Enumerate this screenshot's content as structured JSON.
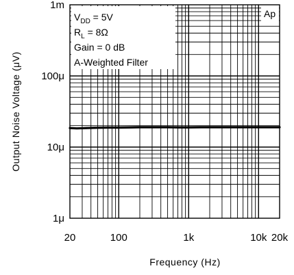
{
  "chart_data": {
    "type": "line",
    "x_scale": "log",
    "y_scale": "log",
    "xlim": [
      20,
      20000
    ],
    "ylim": [
      1e-06,
      0.001
    ],
    "x_ticks": [
      {
        "value": 20,
        "label": "20"
      },
      {
        "value": 100,
        "label": "100"
      },
      {
        "value": 1000,
        "label": "1k"
      },
      {
        "value": 10000,
        "label": "10k"
      },
      {
        "value": 20000,
        "label": "20k"
      }
    ],
    "y_ticks": [
      {
        "value": 0.001,
        "label": "1m"
      },
      {
        "value": 0.0001,
        "label": "100μ"
      },
      {
        "value": 1e-05,
        "label": "10μ"
      },
      {
        "value": 1e-06,
        "label": "1μ"
      }
    ],
    "xlabel": "Frequency (Hz)",
    "ylabel": "Output Noise Voltage (μV)",
    "grid": true,
    "series": [
      {
        "x": [
          20,
          25,
          30,
          40,
          50,
          70,
          100,
          150,
          200,
          300,
          500,
          700,
          1000,
          1500,
          2000,
          3000,
          5000,
          7000,
          10000,
          15000,
          20000
        ],
        "y": [
          1.85e-05,
          1.83e-05,
          1.84e-05,
          1.86e-05,
          1.87e-05,
          1.88e-05,
          1.88e-05,
          1.89e-05,
          1.9e-05,
          1.9e-05,
          1.9e-05,
          1.89e-05,
          1.89e-05,
          1.9e-05,
          1.9e-05,
          1.9e-05,
          1.9e-05,
          1.9e-05,
          1.9e-05,
          1.9e-05,
          1.9e-05
        ]
      }
    ],
    "annotations": {
      "vdd": {
        "main": "V",
        "sub": "DD",
        "rest": " = 5V"
      },
      "rl": {
        "main": "R",
        "sub": "L",
        "rest": " = 8Ω"
      },
      "gain": "Gain = 0 dB",
      "filter": "A-Weighted Filter",
      "tag": "Ap"
    }
  }
}
